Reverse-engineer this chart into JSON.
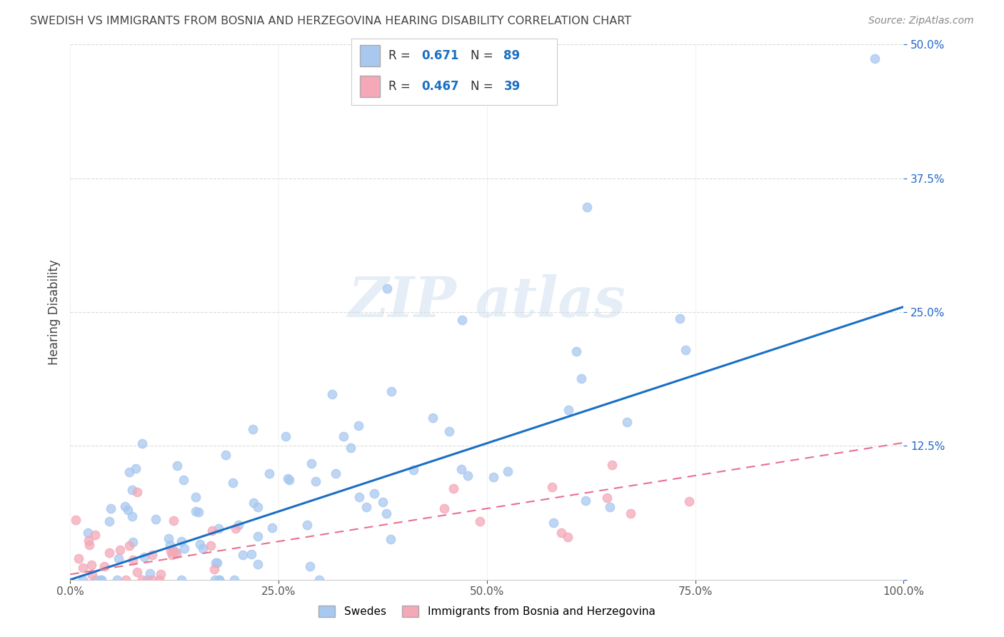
{
  "title": "SWEDISH VS IMMIGRANTS FROM BOSNIA AND HERZEGOVINA HEARING DISABILITY CORRELATION CHART",
  "source": "Source: ZipAtlas.com",
  "ylabel": "Hearing Disability",
  "xlim": [
    0,
    1.0
  ],
  "ylim": [
    0,
    0.5
  ],
  "xticks": [
    0.0,
    0.25,
    0.5,
    0.75,
    1.0
  ],
  "xtick_labels": [
    "0.0%",
    "25.0%",
    "50.0%",
    "75.0%",
    "100.0%"
  ],
  "yticks": [
    0.0,
    0.125,
    0.25,
    0.375,
    0.5
  ],
  "ytick_labels": [
    "",
    "12.5%",
    "25.0%",
    "37.5%",
    "50.0%"
  ],
  "legend_labels_bottom": [
    "Swedes",
    "Immigrants from Bosnia and Herzegovina"
  ],
  "r_swedes": 0.671,
  "n_swedes": 89,
  "r_immigrants": 0.467,
  "n_immigrants": 39,
  "swede_color": "#a8c8f0",
  "immigrant_color": "#f4a8b8",
  "swede_line_color": "#1a6fc4",
  "immigrant_line_color": "#e87090",
  "background_color": "#ffffff",
  "grid_color": "#cccccc",
  "title_color": "#444444",
  "source_color": "#888888",
  "tick_color": "#2266cc",
  "sw_trend_start_y": 0.0,
  "sw_trend_end_y": 0.255,
  "imm_trend_start_y": 0.005,
  "imm_trend_end_y": 0.128
}
